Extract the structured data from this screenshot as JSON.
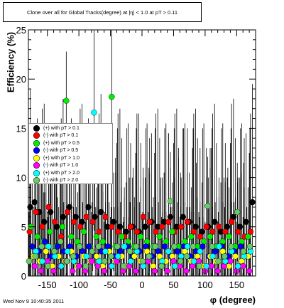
{
  "header": {
    "title": "Clone over all for Global Tracks(degree) at |η| < 1.0 at pT > 0.11"
  },
  "footer": {
    "timestamp": "Wed Nov 9 10:40:35 2011"
  },
  "chart_data": {
    "type": "scatter",
    "title": "Clone over all for Global Tracks(degree) at |η| < 1.0 at pT > 0.11",
    "xlabel": "φ (degree)",
    "ylabel": "Efficiency (%)",
    "xlim": [
      -180,
      180
    ],
    "ylim": [
      0,
      25
    ],
    "x_ticks": [
      -150,
      -100,
      -50,
      0,
      50,
      100,
      150
    ],
    "y_ticks": [
      0,
      5,
      10,
      15,
      20,
      25
    ],
    "legend_position": "center-left",
    "series": [
      {
        "name": "(+) with pT > 0.1",
        "color": "#000000",
        "points": [
          [
            -177,
            7
          ],
          [
            -170,
            7.5
          ],
          [
            -163,
            6.5
          ],
          [
            -155,
            5.5
          ],
          [
            -145,
            6.5
          ],
          [
            -135,
            5
          ],
          [
            -125,
            6
          ],
          [
            -115,
            7
          ],
          [
            -105,
            6
          ],
          [
            -95,
            5.5
          ],
          [
            -85,
            7
          ],
          [
            -75,
            6
          ],
          [
            -65,
            6.5
          ],
          [
            -55,
            5
          ],
          [
            -45,
            5.5
          ],
          [
            -35,
            5
          ],
          [
            -25,
            4.5
          ],
          [
            -15,
            5
          ],
          [
            -5,
            4.5
          ],
          [
            5,
            5
          ],
          [
            15,
            5.5
          ],
          [
            25,
            5
          ],
          [
            35,
            5.5
          ],
          [
            45,
            6
          ],
          [
            55,
            5
          ],
          [
            65,
            6
          ],
          [
            75,
            5.5
          ],
          [
            85,
            5
          ],
          [
            95,
            4.5
          ],
          [
            105,
            5
          ],
          [
            115,
            5.5
          ],
          [
            125,
            4.5
          ],
          [
            135,
            5
          ],
          [
            145,
            6
          ],
          [
            155,
            5
          ],
          [
            165,
            5.5
          ],
          [
            175,
            7.5
          ]
        ]
      },
      {
        "name": "(-) with pT > 0.1",
        "color": "#ff0000",
        "points": [
          [
            -178,
            4.5
          ],
          [
            -168,
            6.5
          ],
          [
            -158,
            5
          ],
          [
            -148,
            7
          ],
          [
            -138,
            5.5
          ],
          [
            -128,
            4
          ],
          [
            -118,
            6.5
          ],
          [
            -108,
            5.5
          ],
          [
            -98,
            5
          ],
          [
            -88,
            6
          ],
          [
            -78,
            5.5
          ],
          [
            -68,
            4.5
          ],
          [
            -58,
            6
          ],
          [
            -48,
            5
          ],
          [
            -38,
            4.5
          ],
          [
            -28,
            4
          ],
          [
            -18,
            5
          ],
          [
            -8,
            4.5
          ],
          [
            2,
            6
          ],
          [
            12,
            5.5
          ],
          [
            22,
            4.5
          ],
          [
            32,
            5
          ],
          [
            42,
            5.5
          ],
          [
            52,
            4.5
          ],
          [
            62,
            5
          ],
          [
            72,
            5.5
          ],
          [
            82,
            4.5
          ],
          [
            92,
            4
          ],
          [
            102,
            5
          ],
          [
            112,
            4.5
          ],
          [
            122,
            5
          ],
          [
            132,
            4.5
          ],
          [
            142,
            5.5
          ],
          [
            152,
            4.5
          ],
          [
            162,
            4
          ],
          [
            172,
            4.5
          ]
        ]
      },
      {
        "name": "(+) with pT > 0.5",
        "color": "#00ee00",
        "points": [
          [
            -176,
            5
          ],
          [
            -166,
            4
          ],
          [
            -156,
            3.5
          ],
          [
            -146,
            4.5
          ],
          [
            -136,
            3
          ],
          [
            -126,
            5
          ],
          [
            -120,
            17.8
          ],
          [
            -112,
            4
          ],
          [
            -102,
            3.5
          ],
          [
            -92,
            4.5
          ],
          [
            -82,
            3
          ],
          [
            -72,
            4
          ],
          [
            -62,
            3.5
          ],
          [
            -48,
            18.2
          ],
          [
            -42,
            3
          ],
          [
            -32,
            4
          ],
          [
            -22,
            3.5
          ],
          [
            -12,
            3
          ],
          [
            -2,
            4
          ],
          [
            8,
            3.5
          ],
          [
            18,
            3
          ],
          [
            28,
            4
          ],
          [
            38,
            3.5
          ],
          [
            48,
            4.5
          ],
          [
            58,
            3
          ],
          [
            68,
            3.5
          ],
          [
            78,
            4
          ],
          [
            88,
            3
          ],
          [
            98,
            3.5
          ],
          [
            108,
            4
          ],
          [
            118,
            3
          ],
          [
            128,
            3.5
          ],
          [
            138,
            4
          ],
          [
            148,
            3
          ],
          [
            158,
            3.5
          ],
          [
            168,
            4
          ]
        ]
      },
      {
        "name": "(-) with pT > 0.5",
        "color": "#0000ff",
        "points": [
          [
            -174,
            3
          ],
          [
            -164,
            2.5
          ],
          [
            -154,
            3.5
          ],
          [
            -144,
            2
          ],
          [
            -134,
            3
          ],
          [
            -124,
            2.5
          ],
          [
            -114,
            3
          ],
          [
            -104,
            2
          ],
          [
            -94,
            2.5
          ],
          [
            -84,
            3
          ],
          [
            -74,
            2
          ],
          [
            -64,
            2.5
          ],
          [
            -54,
            3
          ],
          [
            -44,
            2
          ],
          [
            -34,
            2.5
          ],
          [
            -24,
            3
          ],
          [
            -14,
            2
          ],
          [
            -4,
            2.5
          ],
          [
            6,
            3
          ],
          [
            16,
            2
          ],
          [
            26,
            2.5
          ],
          [
            36,
            3
          ],
          [
            46,
            2
          ],
          [
            56,
            2.5
          ],
          [
            66,
            3
          ],
          [
            76,
            2
          ],
          [
            86,
            2.5
          ],
          [
            96,
            3
          ],
          [
            106,
            2
          ],
          [
            116,
            2.5
          ],
          [
            126,
            3
          ],
          [
            136,
            2
          ],
          [
            146,
            2.5
          ],
          [
            156,
            3
          ],
          [
            166,
            2
          ]
        ]
      },
      {
        "name": "(+) with pT > 1.0",
        "color": "#ffff00",
        "points": [
          [
            -172,
            2
          ],
          [
            -162,
            1.5
          ],
          [
            -152,
            2.5
          ],
          [
            -142,
            1
          ],
          [
            -132,
            2
          ],
          [
            -122,
            1.5
          ],
          [
            -112,
            2.5
          ],
          [
            -102,
            1
          ],
          [
            -92,
            2
          ],
          [
            -82,
            1.5
          ],
          [
            -72,
            2
          ],
          [
            -62,
            1
          ],
          [
            -52,
            2.5
          ],
          [
            -42,
            1.5
          ],
          [
            -32,
            2
          ],
          [
            -22,
            1
          ],
          [
            -12,
            2
          ],
          [
            -2,
            1.5
          ],
          [
            8,
            2.5
          ],
          [
            18,
            1
          ],
          [
            28,
            2
          ],
          [
            38,
            1.5
          ],
          [
            48,
            2
          ],
          [
            58,
            1
          ],
          [
            68,
            2.5
          ],
          [
            78,
            1.5
          ],
          [
            88,
            2
          ],
          [
            98,
            1
          ],
          [
            108,
            2
          ],
          [
            118,
            1.5
          ],
          [
            128,
            2.5
          ],
          [
            138,
            1
          ],
          [
            148,
            2
          ],
          [
            158,
            1.5
          ],
          [
            168,
            2
          ]
        ]
      },
      {
        "name": "(-) with pT > 1.0",
        "color": "#ff00ff",
        "points": [
          [
            -170,
            1
          ],
          [
            -160,
            0.5
          ],
          [
            -150,
            1.5
          ],
          [
            -140,
            0.5
          ],
          [
            -130,
            1
          ],
          [
            -120,
            1.5
          ],
          [
            -110,
            0.5
          ],
          [
            -100,
            1
          ],
          [
            -90,
            0.5
          ],
          [
            -80,
            1.5
          ],
          [
            -70,
            1
          ],
          [
            -60,
            0.5
          ],
          [
            -50,
            1
          ],
          [
            -40,
            1.5
          ],
          [
            -30,
            0.5
          ],
          [
            -20,
            1
          ],
          [
            -10,
            0.5
          ],
          [
            0,
            1
          ],
          [
            10,
            1.5
          ],
          [
            20,
            0.5
          ],
          [
            30,
            1
          ],
          [
            40,
            0.5
          ],
          [
            50,
            1.5
          ],
          [
            60,
            1
          ],
          [
            70,
            0.5
          ],
          [
            80,
            1
          ],
          [
            90,
            1.5
          ],
          [
            100,
            0.5
          ],
          [
            110,
            1
          ],
          [
            120,
            0.5
          ],
          [
            130,
            1
          ],
          [
            140,
            1.5
          ],
          [
            150,
            0.5
          ],
          [
            160,
            1
          ],
          [
            170,
            0.5
          ]
        ]
      },
      {
        "name": "(+) with pT > 2.0",
        "color": "#00ffff",
        "points": [
          [
            -168,
            2.5
          ],
          [
            -158,
            1.5
          ],
          [
            -148,
            3
          ],
          [
            -138,
            2
          ],
          [
            -128,
            1
          ],
          [
            -118,
            2.5
          ],
          [
            -108,
            1.5
          ],
          [
            -98,
            3
          ],
          [
            -88,
            2
          ],
          [
            -76,
            16.6
          ],
          [
            -68,
            1.5
          ],
          [
            -58,
            2.5
          ],
          [
            -48,
            1
          ],
          [
            -38,
            2
          ],
          [
            -28,
            3
          ],
          [
            -18,
            1.5
          ],
          [
            -8,
            2.5
          ],
          [
            2,
            1
          ],
          [
            12,
            2
          ],
          [
            22,
            3
          ],
          [
            32,
            1.5
          ],
          [
            42,
            2.5
          ],
          [
            52,
            1
          ],
          [
            62,
            2
          ],
          [
            72,
            3
          ],
          [
            82,
            1.5
          ],
          [
            92,
            2.5
          ],
          [
            102,
            1
          ],
          [
            112,
            2
          ],
          [
            122,
            3
          ],
          [
            132,
            1.5
          ],
          [
            142,
            2.5
          ],
          [
            152,
            1
          ],
          [
            162,
            2
          ],
          [
            172,
            2.5
          ]
        ]
      },
      {
        "name": "(-) with pT > 2.0",
        "color": "#66cc66",
        "points": [
          [
            -179,
            1.5
          ],
          [
            -169,
            2
          ],
          [
            -159,
            3
          ],
          [
            -149,
            1
          ],
          [
            -139,
            2.5
          ],
          [
            -129,
            3.5
          ],
          [
            -119,
            1.5
          ],
          [
            -109,
            2
          ],
          [
            -99,
            3
          ],
          [
            -89,
            1
          ],
          [
            -79,
            2.5
          ],
          [
            -69,
            3
          ],
          [
            -59,
            1.5
          ],
          [
            -49,
            2
          ],
          [
            -39,
            3
          ],
          [
            -29,
            1
          ],
          [
            -19,
            2.5
          ],
          [
            -9,
            3
          ],
          [
            1,
            1.5
          ],
          [
            11,
            2
          ],
          [
            21,
            3
          ],
          [
            31,
            1
          ],
          [
            45,
            7.6
          ],
          [
            51,
            3
          ],
          [
            61,
            1.5
          ],
          [
            71,
            2
          ],
          [
            81,
            3
          ],
          [
            91,
            1
          ],
          [
            104,
            7.1
          ],
          [
            111,
            3
          ],
          [
            121,
            1.5
          ],
          [
            131,
            2
          ],
          [
            141,
            3
          ],
          [
            151,
            6.5
          ],
          [
            161,
            2.5
          ],
          [
            171,
            3
          ]
        ]
      }
    ]
  }
}
